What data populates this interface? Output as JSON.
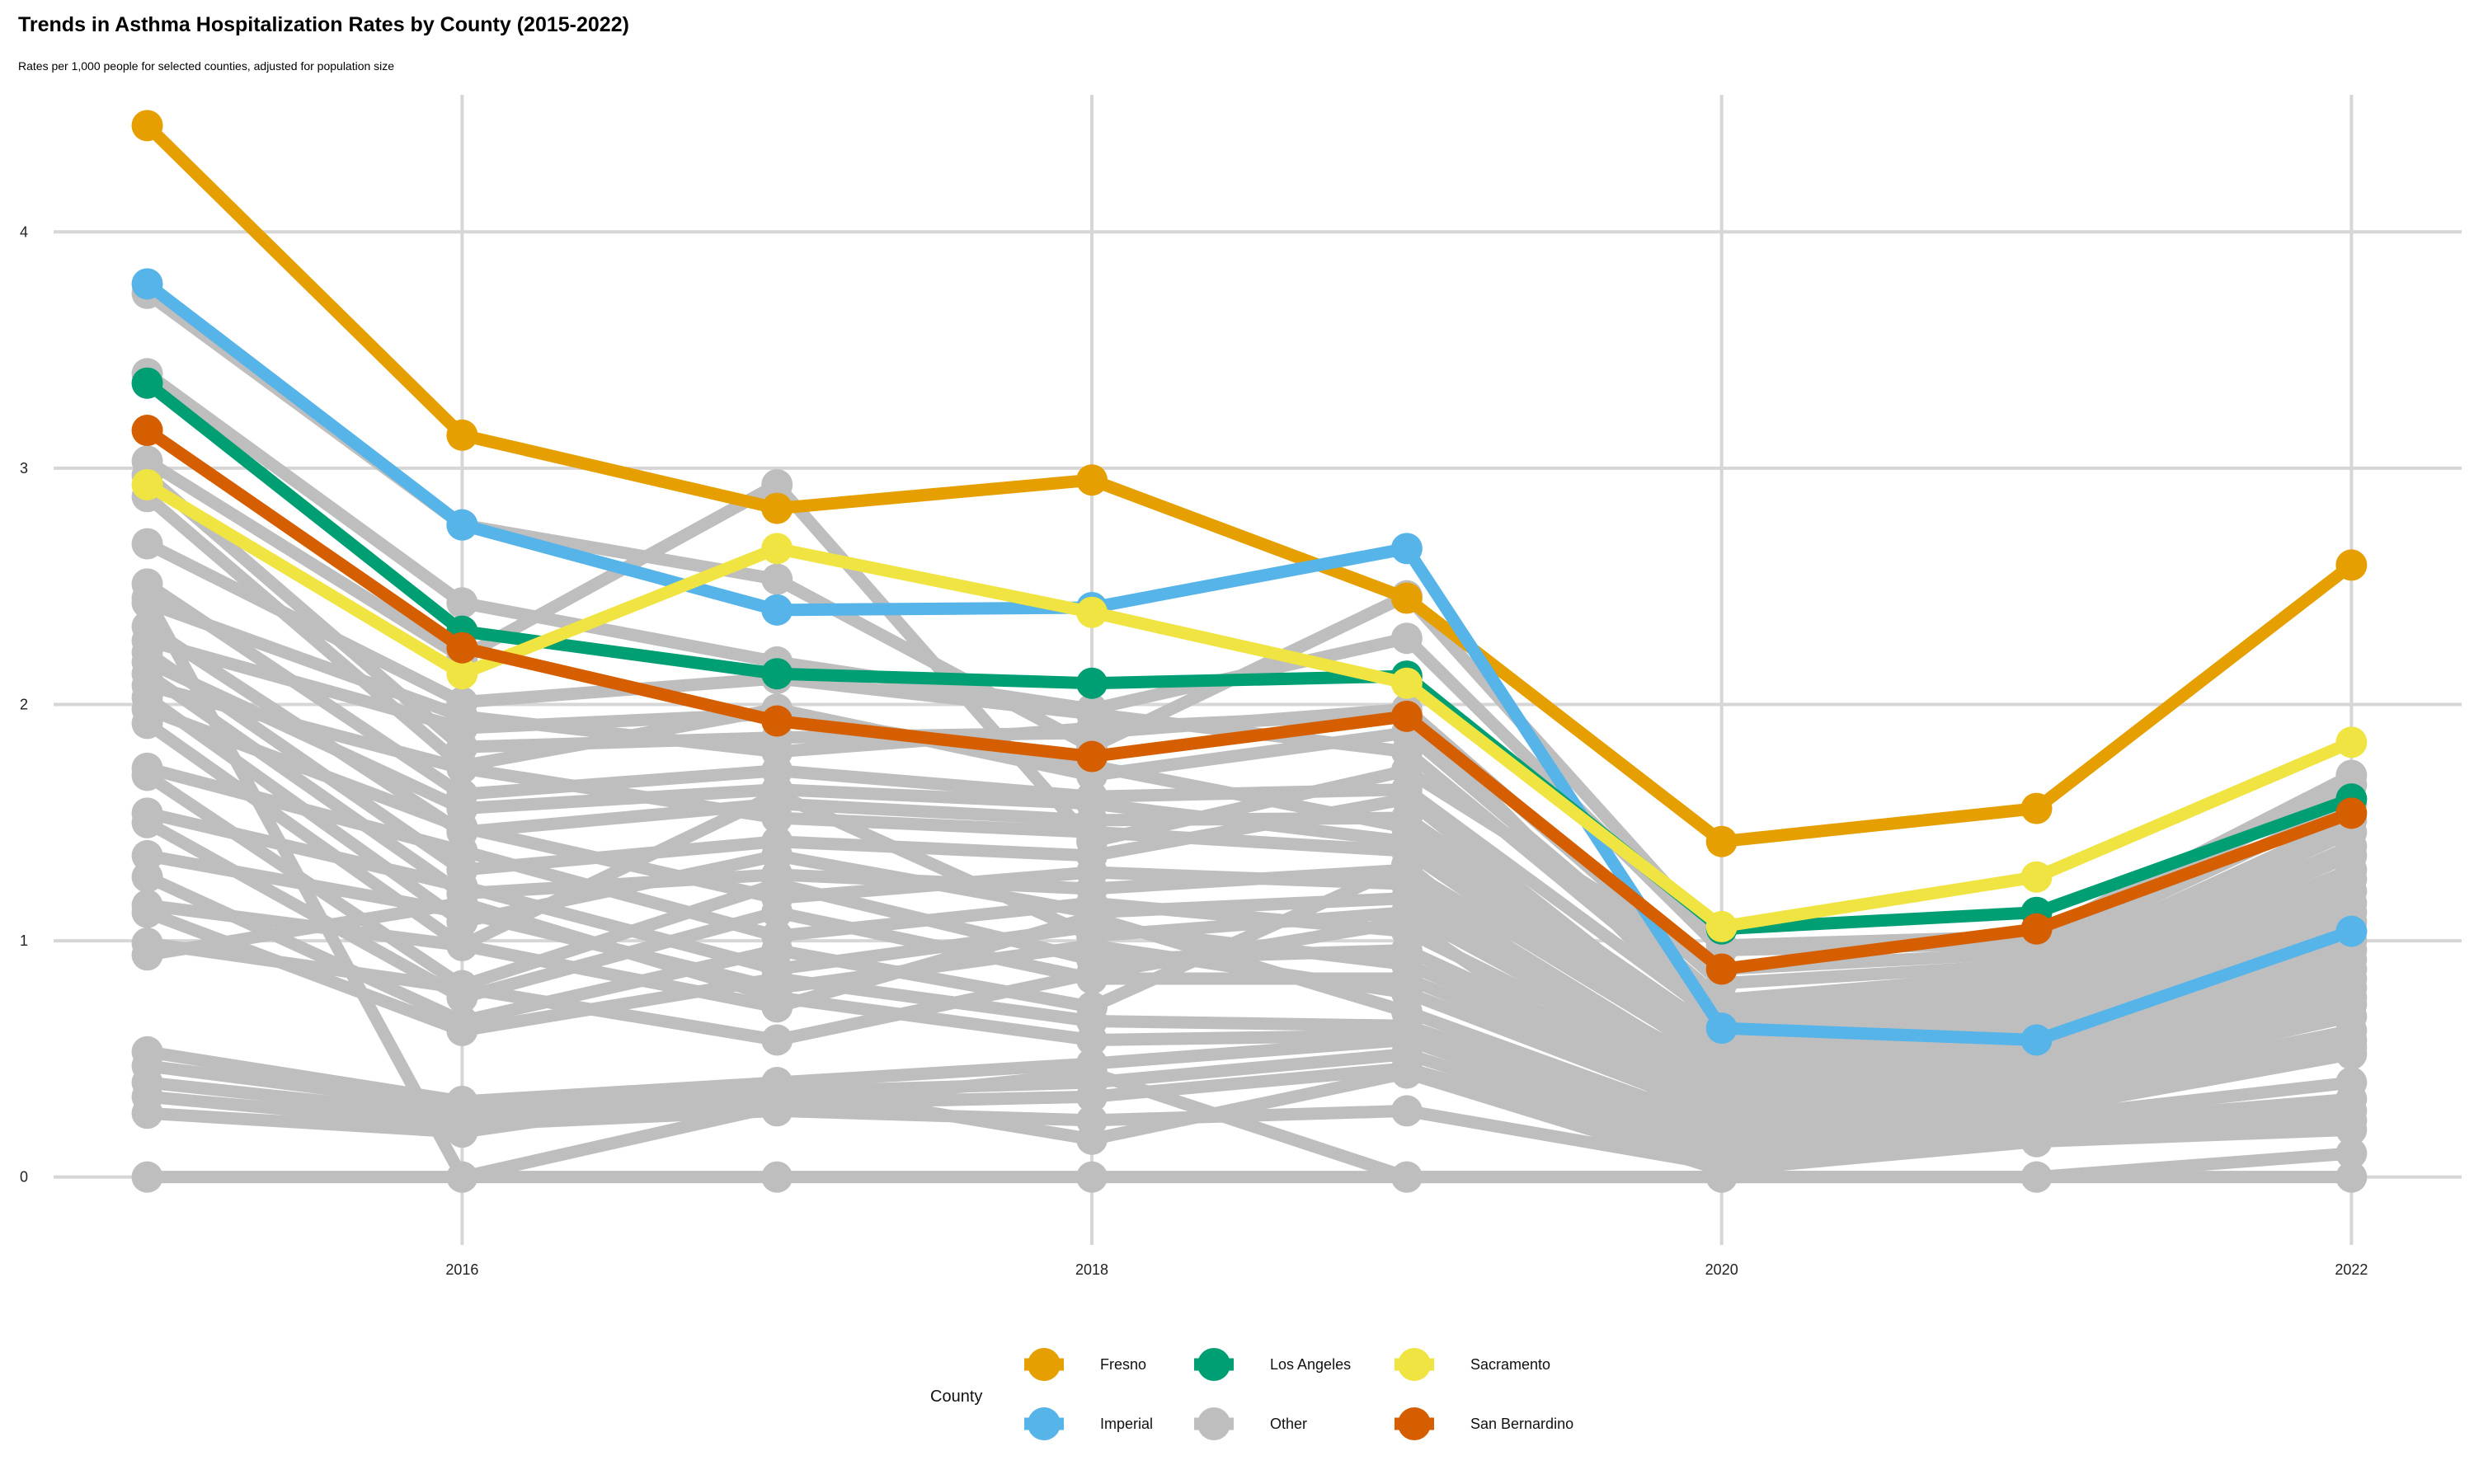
{
  "chart_data": {
    "type": "line",
    "title": "Trends in Asthma Hospitalization Rates by County (2015-2022)",
    "subtitle": "Rates per 1,000 people for selected counties, adjusted for population size",
    "xlabel": "",
    "ylabel": "",
    "x": [
      2015,
      2016,
      2017,
      2018,
      2019,
      2020,
      2021,
      2022
    ],
    "x_ticks": [
      2016,
      2018,
      2020,
      2022
    ],
    "y_ticks": [
      0,
      1,
      2,
      3,
      4
    ],
    "xlim": [
      2014.7,
      2022.35
    ],
    "ylim": [
      -0.2,
      4.65
    ],
    "grid": true,
    "legend": {
      "title": "County",
      "position": "bottom"
    },
    "highlight_series": [
      {
        "name": "Fresno",
        "color": "#E69F00",
        "values": [
          4.45,
          3.14,
          2.83,
          2.95,
          2.45,
          1.42,
          1.56,
          2.59
        ]
      },
      {
        "name": "Imperial",
        "color": "#56B4E9",
        "values": [
          3.78,
          2.76,
          2.4,
          2.41,
          2.66,
          0.63,
          0.58,
          1.04
        ]
      },
      {
        "name": "Los Angeles",
        "color": "#009E73",
        "values": [
          3.36,
          2.31,
          2.13,
          2.09,
          2.12,
          1.05,
          1.12,
          1.6
        ]
      },
      {
        "name": "Sacramento",
        "color": "#F0E442",
        "values": [
          2.93,
          2.13,
          2.66,
          2.39,
          2.09,
          1.06,
          1.27,
          1.84
        ]
      },
      {
        "name": "San Bernardino",
        "color": "#D55E00",
        "values": [
          3.16,
          2.24,
          1.93,
          1.78,
          1.95,
          0.88,
          1.05,
          1.54
        ]
      }
    ],
    "other_series": {
      "name": "Other",
      "color": "#BEBEBE",
      "values": [
        [
          3.74,
          2.76,
          2.53,
          1.82,
          2.46,
          0.98,
          1.02,
          1.7
        ],
        [
          3.4,
          2.43,
          2.18,
          1.98,
          2.28,
          0.96,
          0.99,
          1.66
        ],
        [
          3.03,
          2.2,
          2.93,
          1.42,
          1.72,
          0.88,
          0.95,
          1.58
        ],
        [
          2.97,
          1.82,
          1.86,
          1.88,
          1.98,
          0.82,
          0.9,
          1.51
        ],
        [
          2.88,
          1.74,
          1.98,
          1.7,
          1.88,
          0.75,
          0.86,
          1.46
        ],
        [
          2.68,
          2.01,
          2.11,
          1.96,
          1.8,
          0.7,
          0.82,
          1.4
        ],
        [
          2.51,
          1.62,
          1.72,
          1.61,
          1.64,
          0.66,
          0.8,
          1.36
        ],
        [
          2.43,
          1.95,
          1.8,
          1.9,
          1.96,
          0.62,
          0.77,
          1.3
        ],
        [
          2.33,
          1.46,
          1.58,
          1.51,
          1.52,
          0.6,
          0.74,
          1.26
        ],
        [
          2.27,
          1.9,
          1.96,
          1.74,
          1.48,
          0.58,
          0.71,
          1.21
        ],
        [
          2.22,
          1.3,
          1.42,
          1.36,
          1.6,
          0.55,
          0.68,
          1.16
        ],
        [
          2.18,
          1.56,
          1.64,
          1.58,
          1.42,
          0.52,
          0.66,
          1.12
        ],
        [
          2.13,
          1.2,
          1.28,
          1.22,
          1.3,
          0.49,
          0.64,
          1.08
        ],
        [
          2.08,
          1.73,
          1.52,
          1.46,
          1.38,
          0.47,
          0.61,
          1.04
        ],
        [
          2.03,
          1.08,
          1.36,
          1.12,
          1.18,
          0.44,
          0.58,
          1.0
        ],
        [
          1.98,
          1.48,
          1.18,
          1.29,
          1.24,
          0.42,
          0.56,
          0.96
        ],
        [
          1.92,
          0.98,
          1.62,
          1.02,
          1.12,
          0.4,
          0.53,
          0.92
        ],
        [
          1.73,
          1.38,
          1.02,
          1.16,
          1.04,
          0.38,
          0.5,
          0.88
        ],
        [
          1.7,
          0.81,
          1.24,
          0.92,
          0.96,
          0.35,
          0.48,
          0.84
        ],
        [
          1.54,
          1.23,
          0.88,
          1.06,
          0.9,
          0.33,
          0.45,
          0.8
        ],
        [
          1.5,
          0.76,
          1.12,
          0.84,
          0.84,
          0.3,
          0.42,
          0.76
        ],
        [
          1.36,
          1.12,
          0.8,
          0.98,
          0.78,
          0.27,
          0.4,
          0.73
        ],
        [
          1.27,
          0.66,
          0.96,
          0.72,
          1.32,
          0.25,
          0.38,
          0.68
        ],
        [
          1.15,
          0.98,
          0.72,
          1.1,
          0.7,
          0.22,
          0.35,
          0.62
        ],
        [
          1.12,
          0.62,
          0.84,
          0.66,
          0.64,
          0.2,
          0.32,
          0.58
        ],
        [
          0.99,
          0.8,
          0.58,
          0.86,
          1.08,
          0.18,
          0.3,
          0.55
        ],
        [
          0.94,
          1.16,
          0.76,
          0.58,
          0.6,
          0.15,
          0.28,
          0.52
        ],
        [
          0.53,
          0.32,
          0.4,
          0.48,
          0.58,
          0.12,
          0.25,
          0.4
        ],
        [
          0.47,
          0.3,
          0.36,
          0.4,
          0.52,
          0.1,
          0.22,
          0.33
        ],
        [
          0.4,
          0.26,
          0.31,
          0.34,
          0.46,
          0.08,
          0.2,
          0.28
        ],
        [
          0.34,
          0.22,
          0.28,
          0.24,
          0.28,
          0.05,
          0.18,
          0.24
        ],
        [
          0.27,
          0.19,
          0.38,
          0.16,
          0.44,
          0.03,
          0.15,
          0.2
        ],
        [
          0.0,
          0.0,
          0.0,
          0.0,
          0.0,
          0.0,
          0.0,
          0.0
        ],
        [
          2.45,
          0.0,
          0.3,
          0.44,
          0.0,
          0.0,
          0.0,
          0.1
        ]
      ]
    },
    "legend_entries": [
      "Fresno",
      "Imperial",
      "Los Angeles",
      "Other",
      "Sacramento",
      "San Bernardino"
    ]
  }
}
